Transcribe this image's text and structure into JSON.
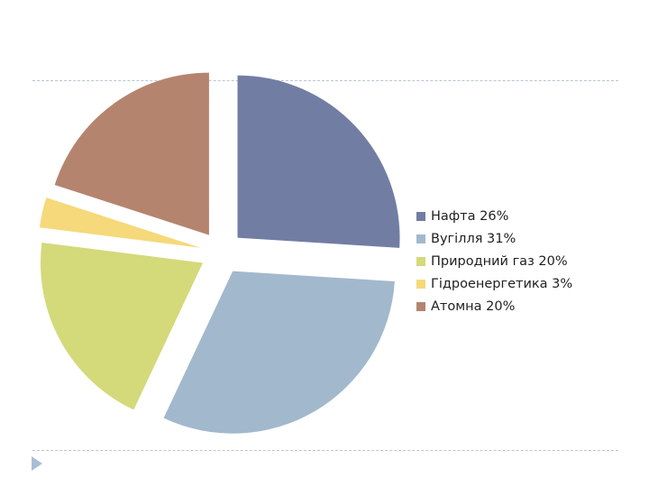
{
  "slide": {
    "divider_color": "#b9c3d3",
    "marker_color": "#a9bdd6",
    "marker_icon": "triangle-right-icon"
  },
  "chart_data": {
    "type": "pie",
    "exploded": true,
    "start_angle_deg": 0,
    "direction": "clockwise",
    "legend_position": "right",
    "slices": [
      {
        "label": "Нафта 26%",
        "value": 26,
        "color": "#717da3"
      },
      {
        "label": "Вугілля 31%",
        "value": 31,
        "color": "#a2b8cd"
      },
      {
        "label": "Природний газ 20%",
        "value": 20,
        "color": "#d4d97a"
      },
      {
        "label": "Гідроенергетика 3%",
        "value": 3,
        "color": "#f5d97a"
      },
      {
        "label": "Атомна 20%",
        "value": 20,
        "color": "#b5846f"
      }
    ]
  }
}
